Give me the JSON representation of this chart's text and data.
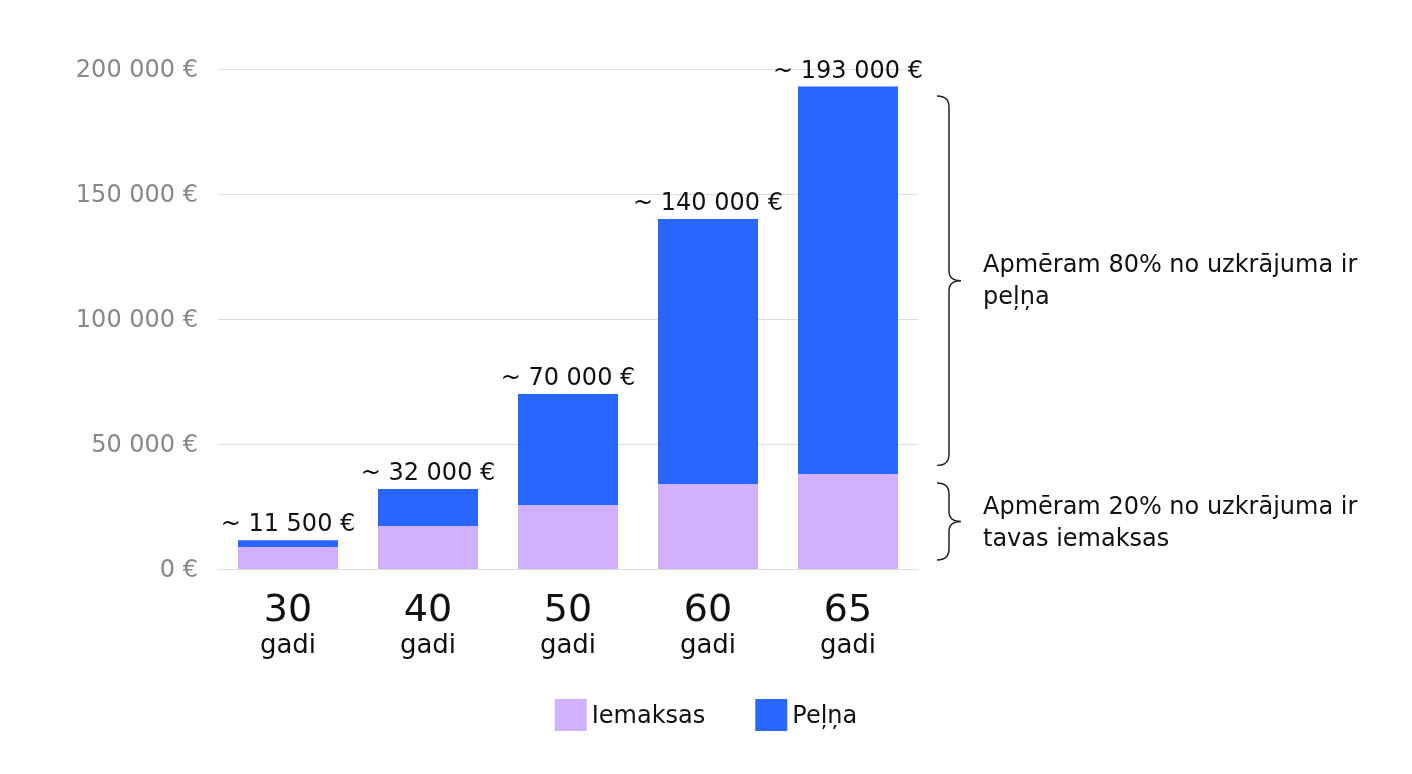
{
  "chart_data": {
    "type": "bar",
    "stacked": true,
    "categories": [
      "30 gadi",
      "40 gadi",
      "50 gadi",
      "60 gadi",
      "65 gadi"
    ],
    "series": [
      {
        "name": "Iemaksas",
        "color": "#d1b1fd",
        "values": [
          8800,
          17200,
          25600,
          34000,
          38000
        ]
      },
      {
        "name": "Peļņa",
        "color": "#2966ff",
        "values": [
          2700,
          14800,
          44400,
          106000,
          155000
        ]
      }
    ],
    "totals": [
      "~ 11 500 €",
      "~ 32 000 €",
      "~ 70 000 €",
      "~ 140 000 €",
      "~ 193 000 €"
    ],
    "ylim": [
      0,
      200000
    ],
    "yticks": [
      {
        "value": 0,
        "label": "0 €"
      },
      {
        "value": 50000,
        "label": "50 000 €"
      },
      {
        "value": 100000,
        "label": "100 000 €"
      },
      {
        "value": 150000,
        "label": "150 000 €"
      },
      {
        "value": 200000,
        "label": "200 000 €"
      }
    ],
    "grid": "y",
    "legend": "bottom",
    "annotations": [
      "Apmēram 80% no uzkrājuma ir peļņa",
      "Apmēram 20% no uzkrājuma ir tavas iemaksas"
    ]
  }
}
